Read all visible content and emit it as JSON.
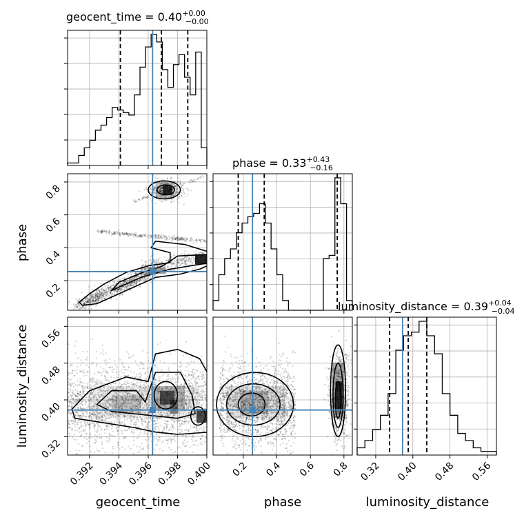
{
  "chart_data": {
    "type": "corner",
    "parameters": [
      "geocent_time",
      "phase",
      "luminosity_distance"
    ],
    "truth": {
      "geocent_time": 0.3963,
      "phase": 0.255,
      "luminosity_distance": 0.378
    },
    "grid": true,
    "panels": {
      "geocent_time": {
        "title": {
          "prefix": "geocent_time = ",
          "value": "0.40",
          "plus": "+0.00",
          "minus": "−0.00"
        },
        "range": [
          0.3905,
          0.4
        ],
        "ticks": [
          0.392,
          0.394,
          0.396,
          0.398,
          0.4
        ],
        "tick_labels": [
          "0.392",
          "0.394",
          "0.396",
          "0.398",
          "0.400"
        ],
        "quantiles": [
          0.3941,
          0.3969,
          0.3987
        ],
        "hist": [
          1,
          1,
          4,
          7,
          10,
          14,
          16,
          19,
          23,
          22,
          21,
          20,
          28,
          39,
          47,
          52,
          49,
          38,
          31,
          40,
          44,
          35,
          28,
          45,
          7
        ],
        "hist_max": 52
      },
      "phase": {
        "title": {
          "prefix": "phase = ",
          "value": "0.33",
          "plus": "+0.43",
          "minus": "−0.16"
        },
        "range": [
          0.02,
          0.85
        ],
        "ticks": [
          0.2,
          0.4,
          0.6,
          0.8
        ],
        "tick_labels": [
          "0.2",
          "0.4",
          "0.6",
          "0.8"
        ],
        "quantiles": [
          0.17,
          0.325,
          0.76
        ],
        "hist": [
          3,
          11,
          16,
          19,
          24,
          27,
          29,
          30,
          33,
          27,
          19,
          11,
          3,
          0,
          0,
          0,
          0,
          0,
          0,
          16,
          17,
          41,
          33,
          3
        ],
        "hist_max": 41
      },
      "luminosity_distance": {
        "title": {
          "prefix": "luminosity_distance = ",
          "value": "0.39",
          "plus": "+0.04",
          "minus": "−0.04"
        },
        "range": [
          0.28,
          0.58
        ],
        "ticks": [
          0.32,
          0.4,
          0.48,
          0.56
        ],
        "tick_labels": [
          "0.32",
          "0.40",
          "0.48",
          "0.56"
        ],
        "quantiles": [
          0.35,
          0.39,
          0.43
        ],
        "hist": [
          2,
          4,
          7,
          11,
          17,
          29,
          33,
          34,
          37,
          33,
          28,
          17,
          11,
          6,
          4,
          2,
          1,
          1
        ],
        "hist_max": 37
      }
    },
    "axis_labels": {
      "x": [
        "geocent_time",
        "phase",
        "luminosity_distance"
      ],
      "y": [
        "phase",
        "luminosity_distance"
      ]
    }
  }
}
